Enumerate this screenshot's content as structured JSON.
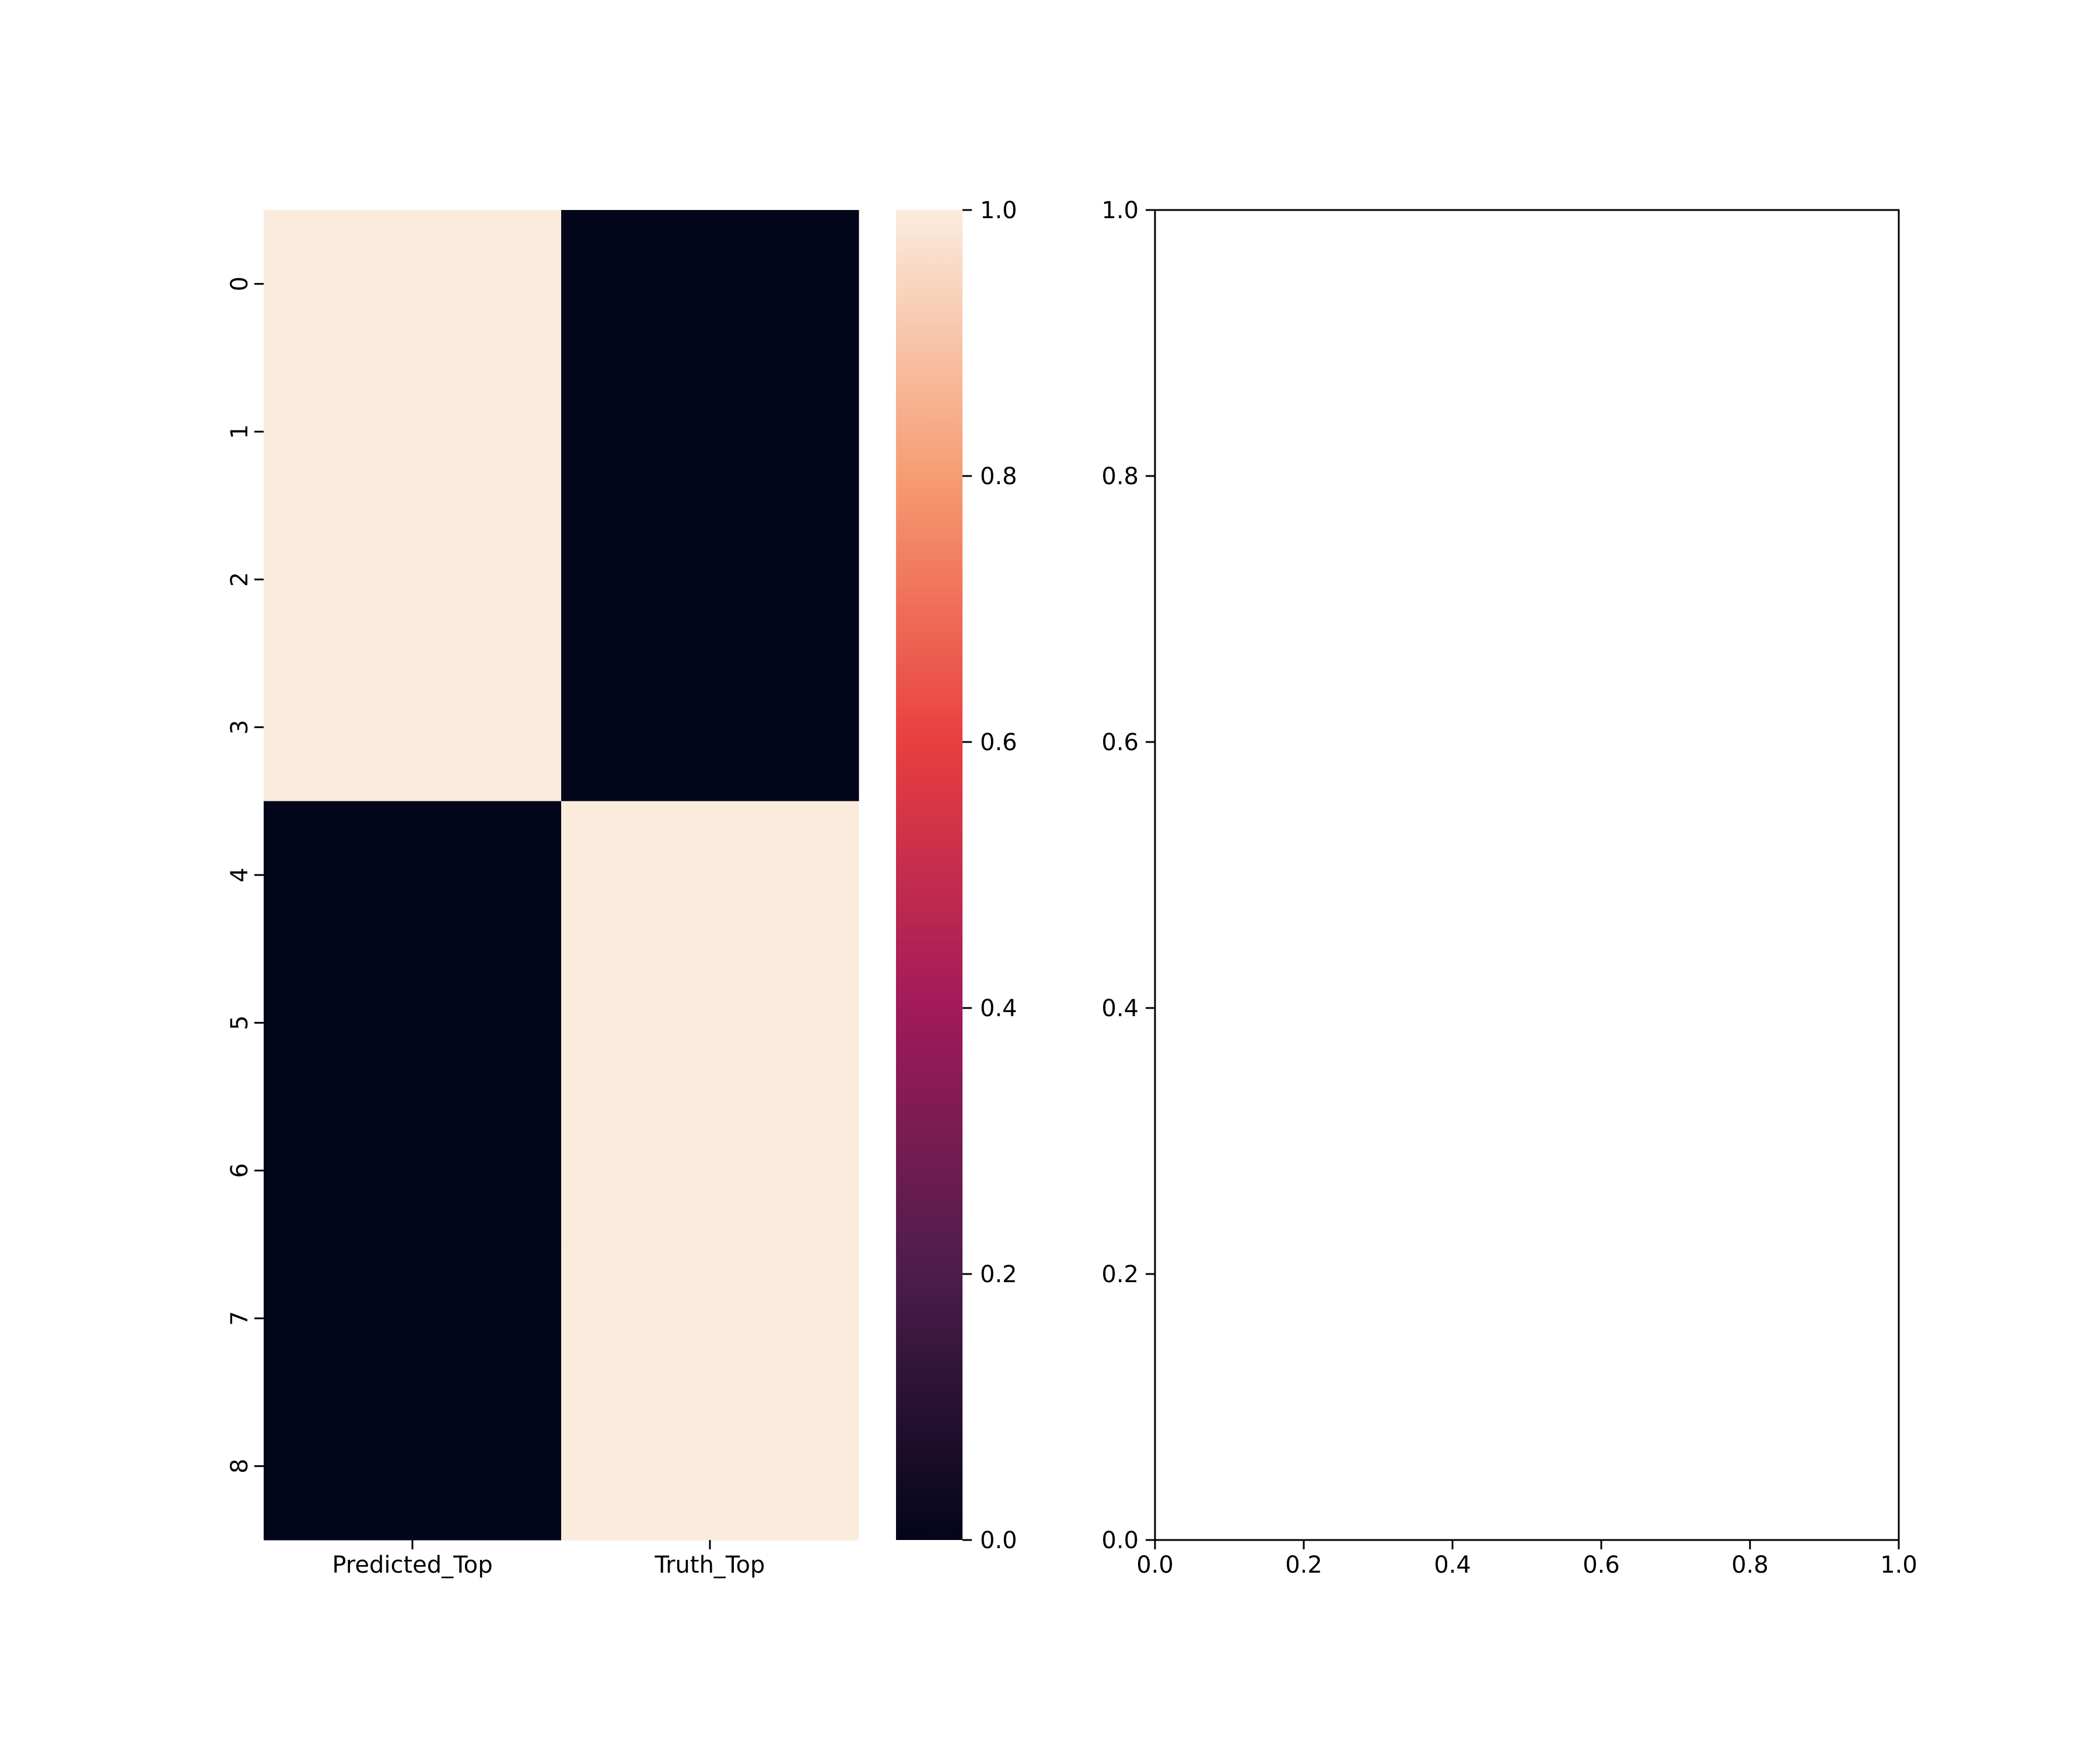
{
  "chart_data": [
    {
      "type": "heatmap",
      "columns": [
        "Predicted_Top",
        "Truth_Top"
      ],
      "rows": [
        "0",
        "1",
        "2",
        "3",
        "4",
        "5",
        "6",
        "7",
        "8"
      ],
      "values": [
        [
          1,
          0
        ],
        [
          1,
          0
        ],
        [
          1,
          0
        ],
        [
          1,
          0
        ],
        [
          0,
          1
        ],
        [
          0,
          1
        ],
        [
          0,
          1
        ],
        [
          0,
          1
        ],
        [
          0,
          1
        ]
      ],
      "colorbar": {
        "range": [
          0,
          1
        ],
        "ticks": [
          "0.0",
          "0.2",
          "0.4",
          "0.6",
          "0.8",
          "1.0"
        ],
        "colormap": "rocket",
        "color_stops": [
          "#03051a",
          "#4c1d4b",
          "#a11a5b",
          "#e83f3f",
          "#f69c73",
          "#faebdd"
        ]
      }
    },
    {
      "type": "scatter",
      "series": [],
      "xlim": [
        0,
        1
      ],
      "ylim": [
        0,
        1
      ],
      "xticks": [
        "0.0",
        "0.2",
        "0.4",
        "0.6",
        "0.8",
        "1.0"
      ],
      "yticks": [
        "0.0",
        "0.2",
        "0.4",
        "0.6",
        "0.8",
        "1.0"
      ]
    }
  ]
}
